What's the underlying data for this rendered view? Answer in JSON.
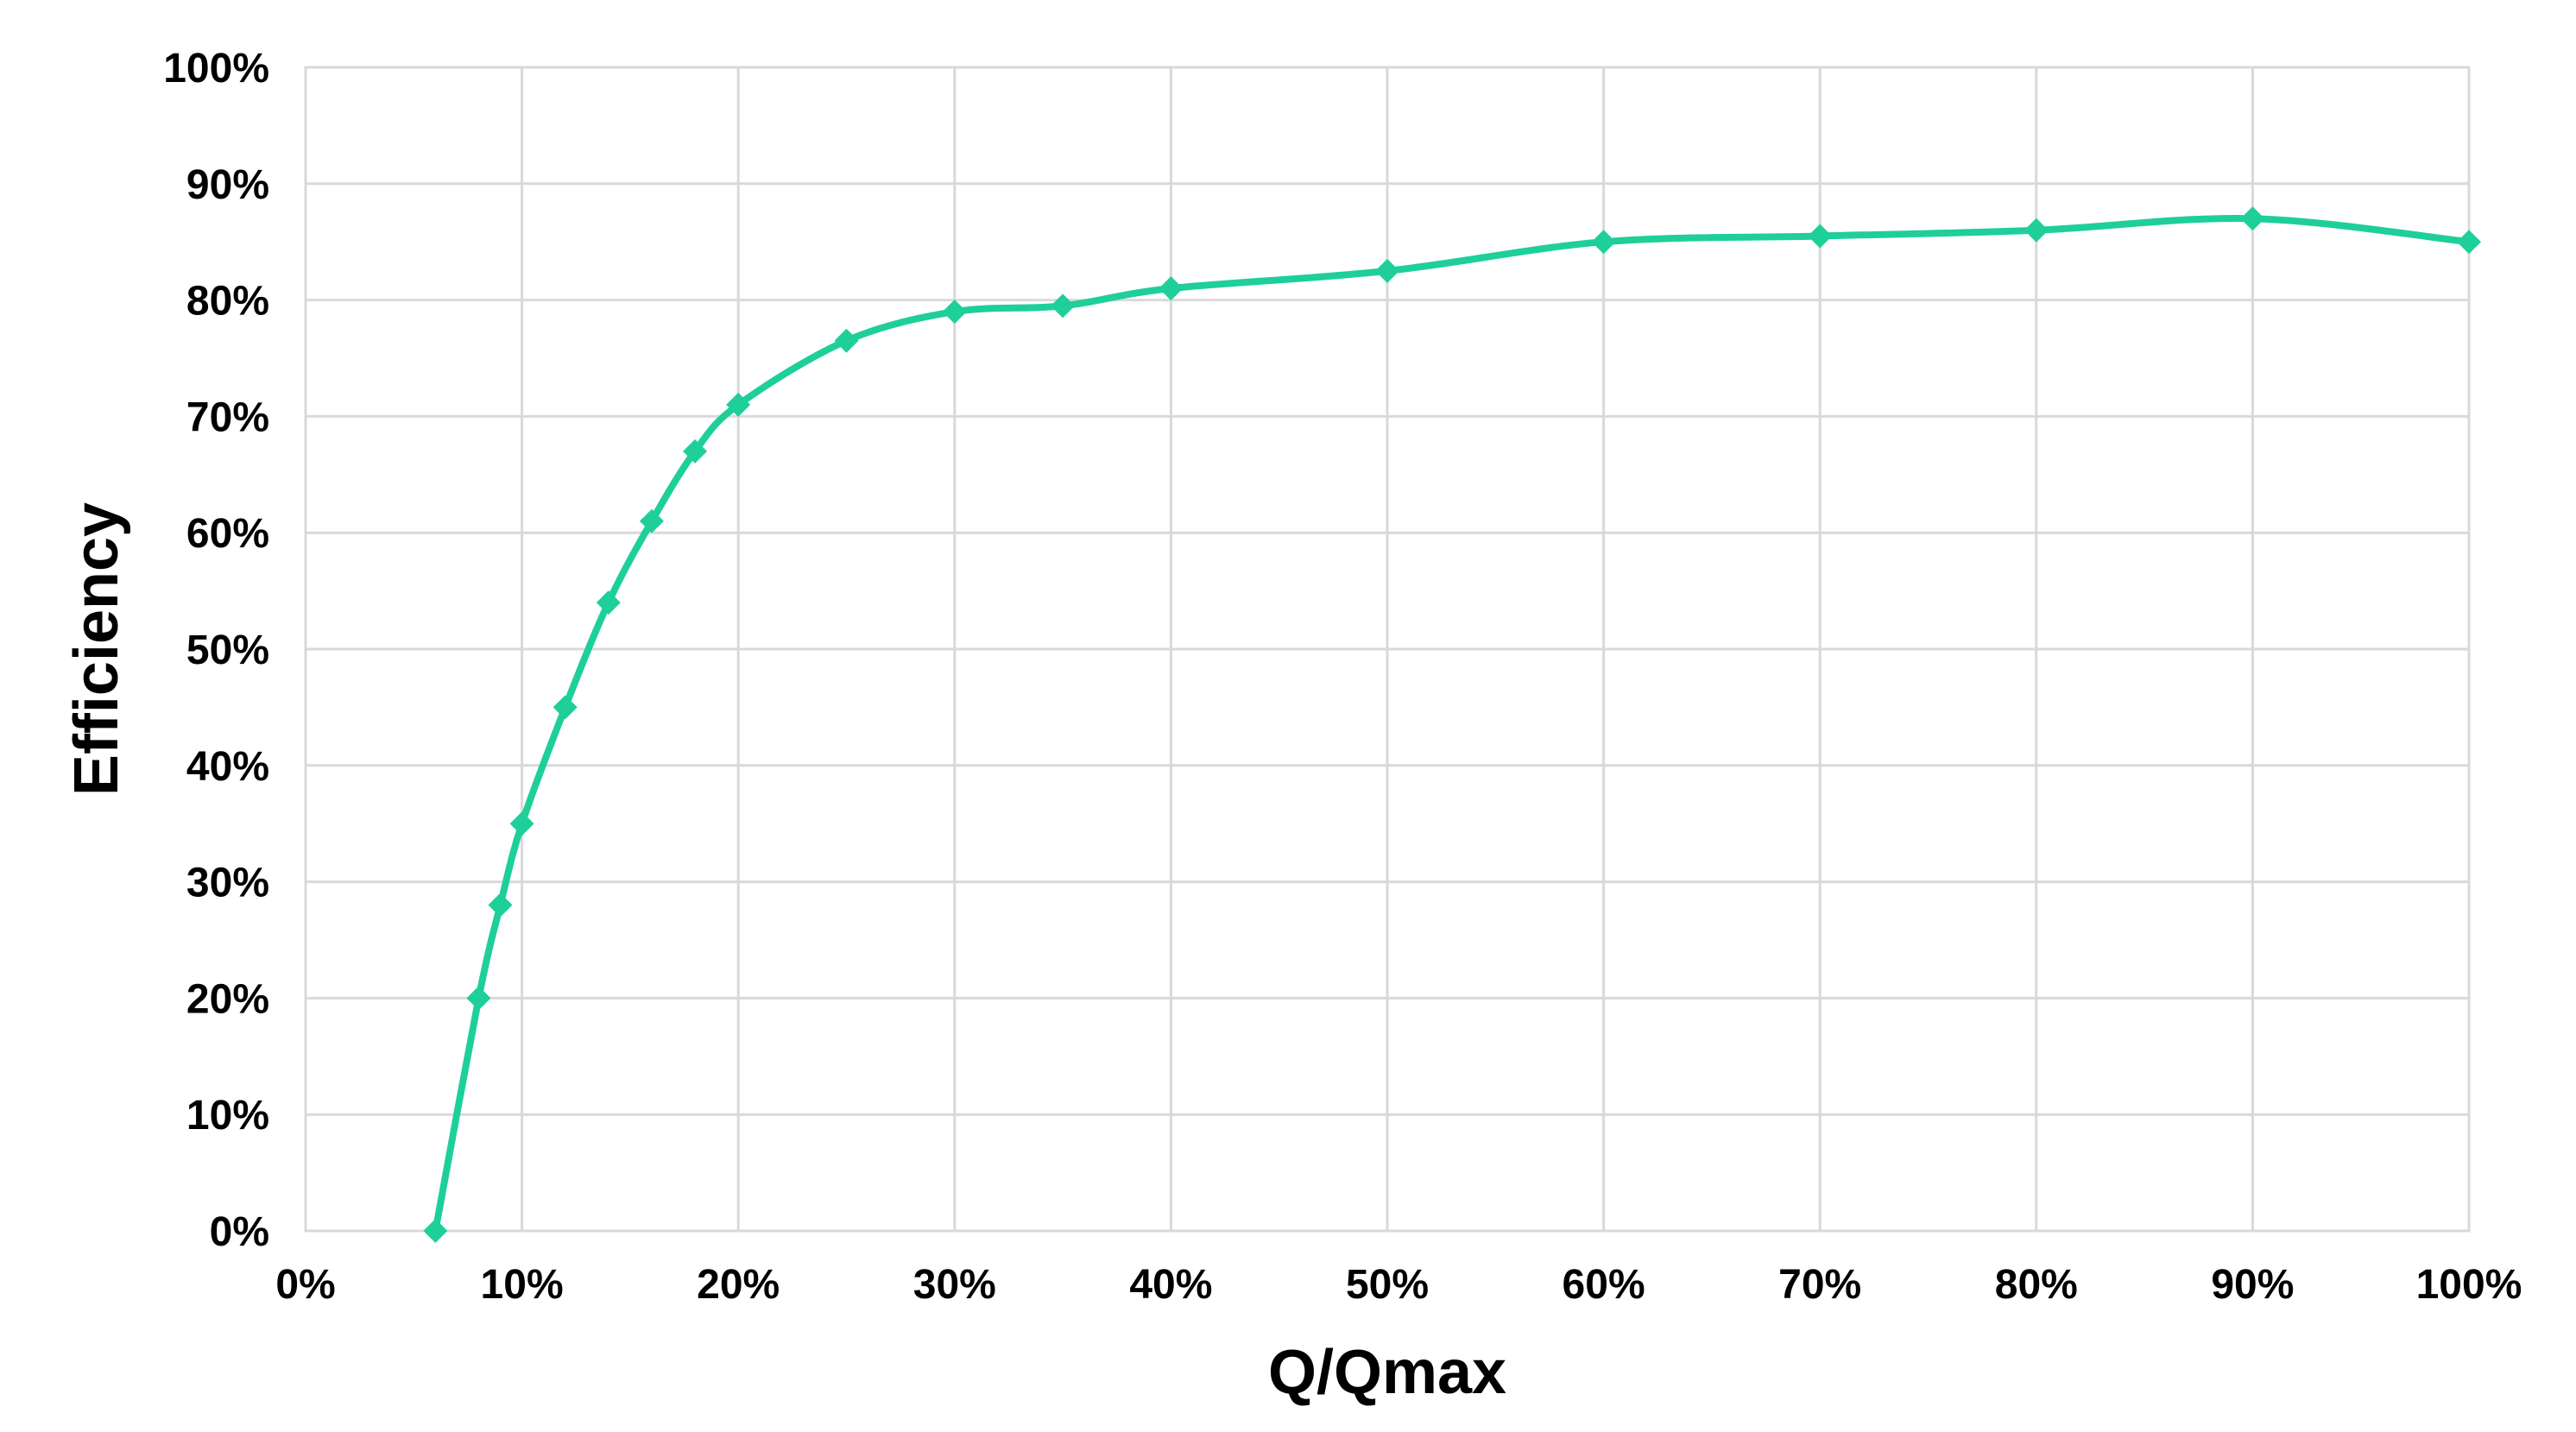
{
  "chart_data": {
    "type": "line",
    "title": "",
    "xlabel": "Q/Qmax",
    "ylabel": "Efficiency",
    "xlim": [
      0,
      100
    ],
    "ylim": [
      0,
      100
    ],
    "x_ticks": [
      "0%",
      "10%",
      "20%",
      "30%",
      "40%",
      "50%",
      "60%",
      "70%",
      "80%",
      "90%",
      "100%"
    ],
    "y_ticks": [
      "0%",
      "10%",
      "20%",
      "30%",
      "40%",
      "50%",
      "60%",
      "70%",
      "80%",
      "90%",
      "100%"
    ],
    "grid": true,
    "legend": "none",
    "marker": "diamond",
    "series_color": "#1ecf9a",
    "series": [
      {
        "x": [
          6,
          8,
          9,
          10,
          12,
          14,
          16,
          18,
          20,
          25,
          30,
          35,
          40,
          50,
          60,
          70,
          80,
          90,
          100
        ],
        "y": [
          0,
          20,
          28,
          35,
          45,
          54,
          61,
          67,
          71,
          76.5,
          79,
          79.5,
          81,
          82.5,
          85,
          85.5,
          86,
          87,
          85
        ]
      }
    ]
  }
}
